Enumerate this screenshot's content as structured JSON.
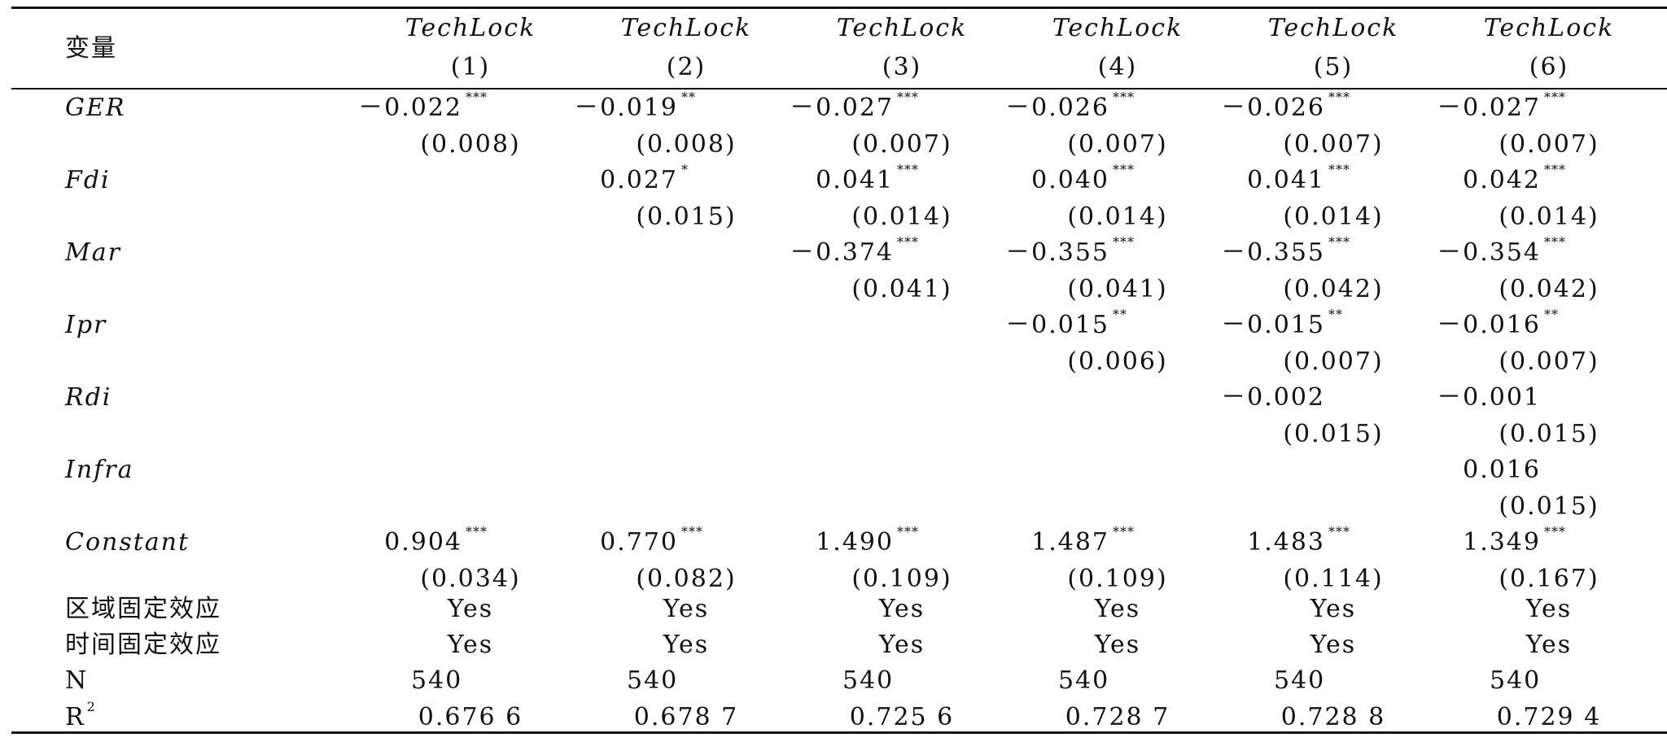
{
  "header": {
    "var_label": "变量",
    "columns": [
      {
        "name": "TechLock",
        "num": "(1)"
      },
      {
        "name": "TechLock",
        "num": "(2)"
      },
      {
        "name": "TechLock",
        "num": "(3)"
      },
      {
        "name": "TechLock",
        "num": "(4)"
      },
      {
        "name": "TechLock",
        "num": "(5)"
      },
      {
        "name": "TechLock",
        "num": "(6)"
      }
    ]
  },
  "rows": [
    {
      "label": "GER",
      "italic": true,
      "coef": [
        {
          "v": "－0.022",
          "s": "***"
        },
        {
          "v": "－0.019",
          "s": "**"
        },
        {
          "v": "－0.027",
          "s": "***"
        },
        {
          "v": "－0.026",
          "s": "***"
        },
        {
          "v": "－0.026",
          "s": "***"
        },
        {
          "v": "－0.027",
          "s": "***"
        }
      ],
      "se": [
        "(0.008)",
        "(0.008)",
        "(0.007)",
        "(0.007)",
        "(0.007)",
        "(0.007)"
      ]
    },
    {
      "label": "Fdi",
      "italic": true,
      "coef": [
        null,
        {
          "v": "0.027",
          "s": "*"
        },
        {
          "v": "0.041",
          "s": "***"
        },
        {
          "v": "0.040",
          "s": "***"
        },
        {
          "v": "0.041",
          "s": "***"
        },
        {
          "v": "0.042",
          "s": "***"
        }
      ],
      "se": [
        null,
        "(0.015)",
        "(0.014)",
        "(0.014)",
        "(0.014)",
        "(0.014)"
      ]
    },
    {
      "label": "Mar",
      "italic": true,
      "coef": [
        null,
        null,
        {
          "v": "－0.374",
          "s": "***"
        },
        {
          "v": "－0.355",
          "s": "***"
        },
        {
          "v": "－0.355",
          "s": "***"
        },
        {
          "v": "－0.354",
          "s": "***"
        }
      ],
      "se": [
        null,
        null,
        "(0.041)",
        "(0.041)",
        "(0.042)",
        "(0.042)"
      ]
    },
    {
      "label": "Ipr",
      "italic": true,
      "coef": [
        null,
        null,
        null,
        {
          "v": "－0.015",
          "s": "**"
        },
        {
          "v": "－0.015",
          "s": "**"
        },
        {
          "v": "－0.016",
          "s": "**"
        }
      ],
      "se": [
        null,
        null,
        null,
        "(0.006)",
        "(0.007)",
        "(0.007)"
      ]
    },
    {
      "label": "Rdi",
      "italic": true,
      "coef": [
        null,
        null,
        null,
        null,
        {
          "v": "－0.002",
          "s": ""
        },
        {
          "v": "－0.001",
          "s": ""
        }
      ],
      "se": [
        null,
        null,
        null,
        null,
        "(0.015)",
        "(0.015)"
      ]
    },
    {
      "label": "Infra",
      "italic": true,
      "coef": [
        null,
        null,
        null,
        null,
        null,
        {
          "v": "0.016",
          "s": ""
        }
      ],
      "se": [
        null,
        null,
        null,
        null,
        null,
        "(0.015)"
      ]
    },
    {
      "label": "Constant",
      "italic": true,
      "coef": [
        {
          "v": "0.904",
          "s": "***"
        },
        {
          "v": "0.770",
          "s": "***"
        },
        {
          "v": "1.490",
          "s": "***"
        },
        {
          "v": "1.487",
          "s": "***"
        },
        {
          "v": "1.483",
          "s": "***"
        },
        {
          "v": "1.349",
          "s": "***"
        }
      ],
      "se": [
        "(0.034)",
        "(0.082)",
        "(0.109)",
        "(0.109)",
        "(0.114)",
        "(0.167)"
      ]
    }
  ],
  "footer": [
    {
      "label": "区域固定效应",
      "values": [
        "Yes",
        "Yes",
        "Yes",
        "Yes",
        "Yes",
        "Yes"
      ]
    },
    {
      "label": "时间固定效应",
      "values": [
        "Yes",
        "Yes",
        "Yes",
        "Yes",
        "Yes",
        "Yes"
      ]
    },
    {
      "label": "N",
      "values": [
        "540",
        "540",
        "540",
        "540",
        "540",
        "540"
      ]
    },
    {
      "label": "R",
      "sup": "2",
      "values": [
        "0.676 6",
        "0.678 7",
        "0.725 6",
        "0.728 7",
        "0.728 8",
        "0.729 4"
      ]
    }
  ]
}
